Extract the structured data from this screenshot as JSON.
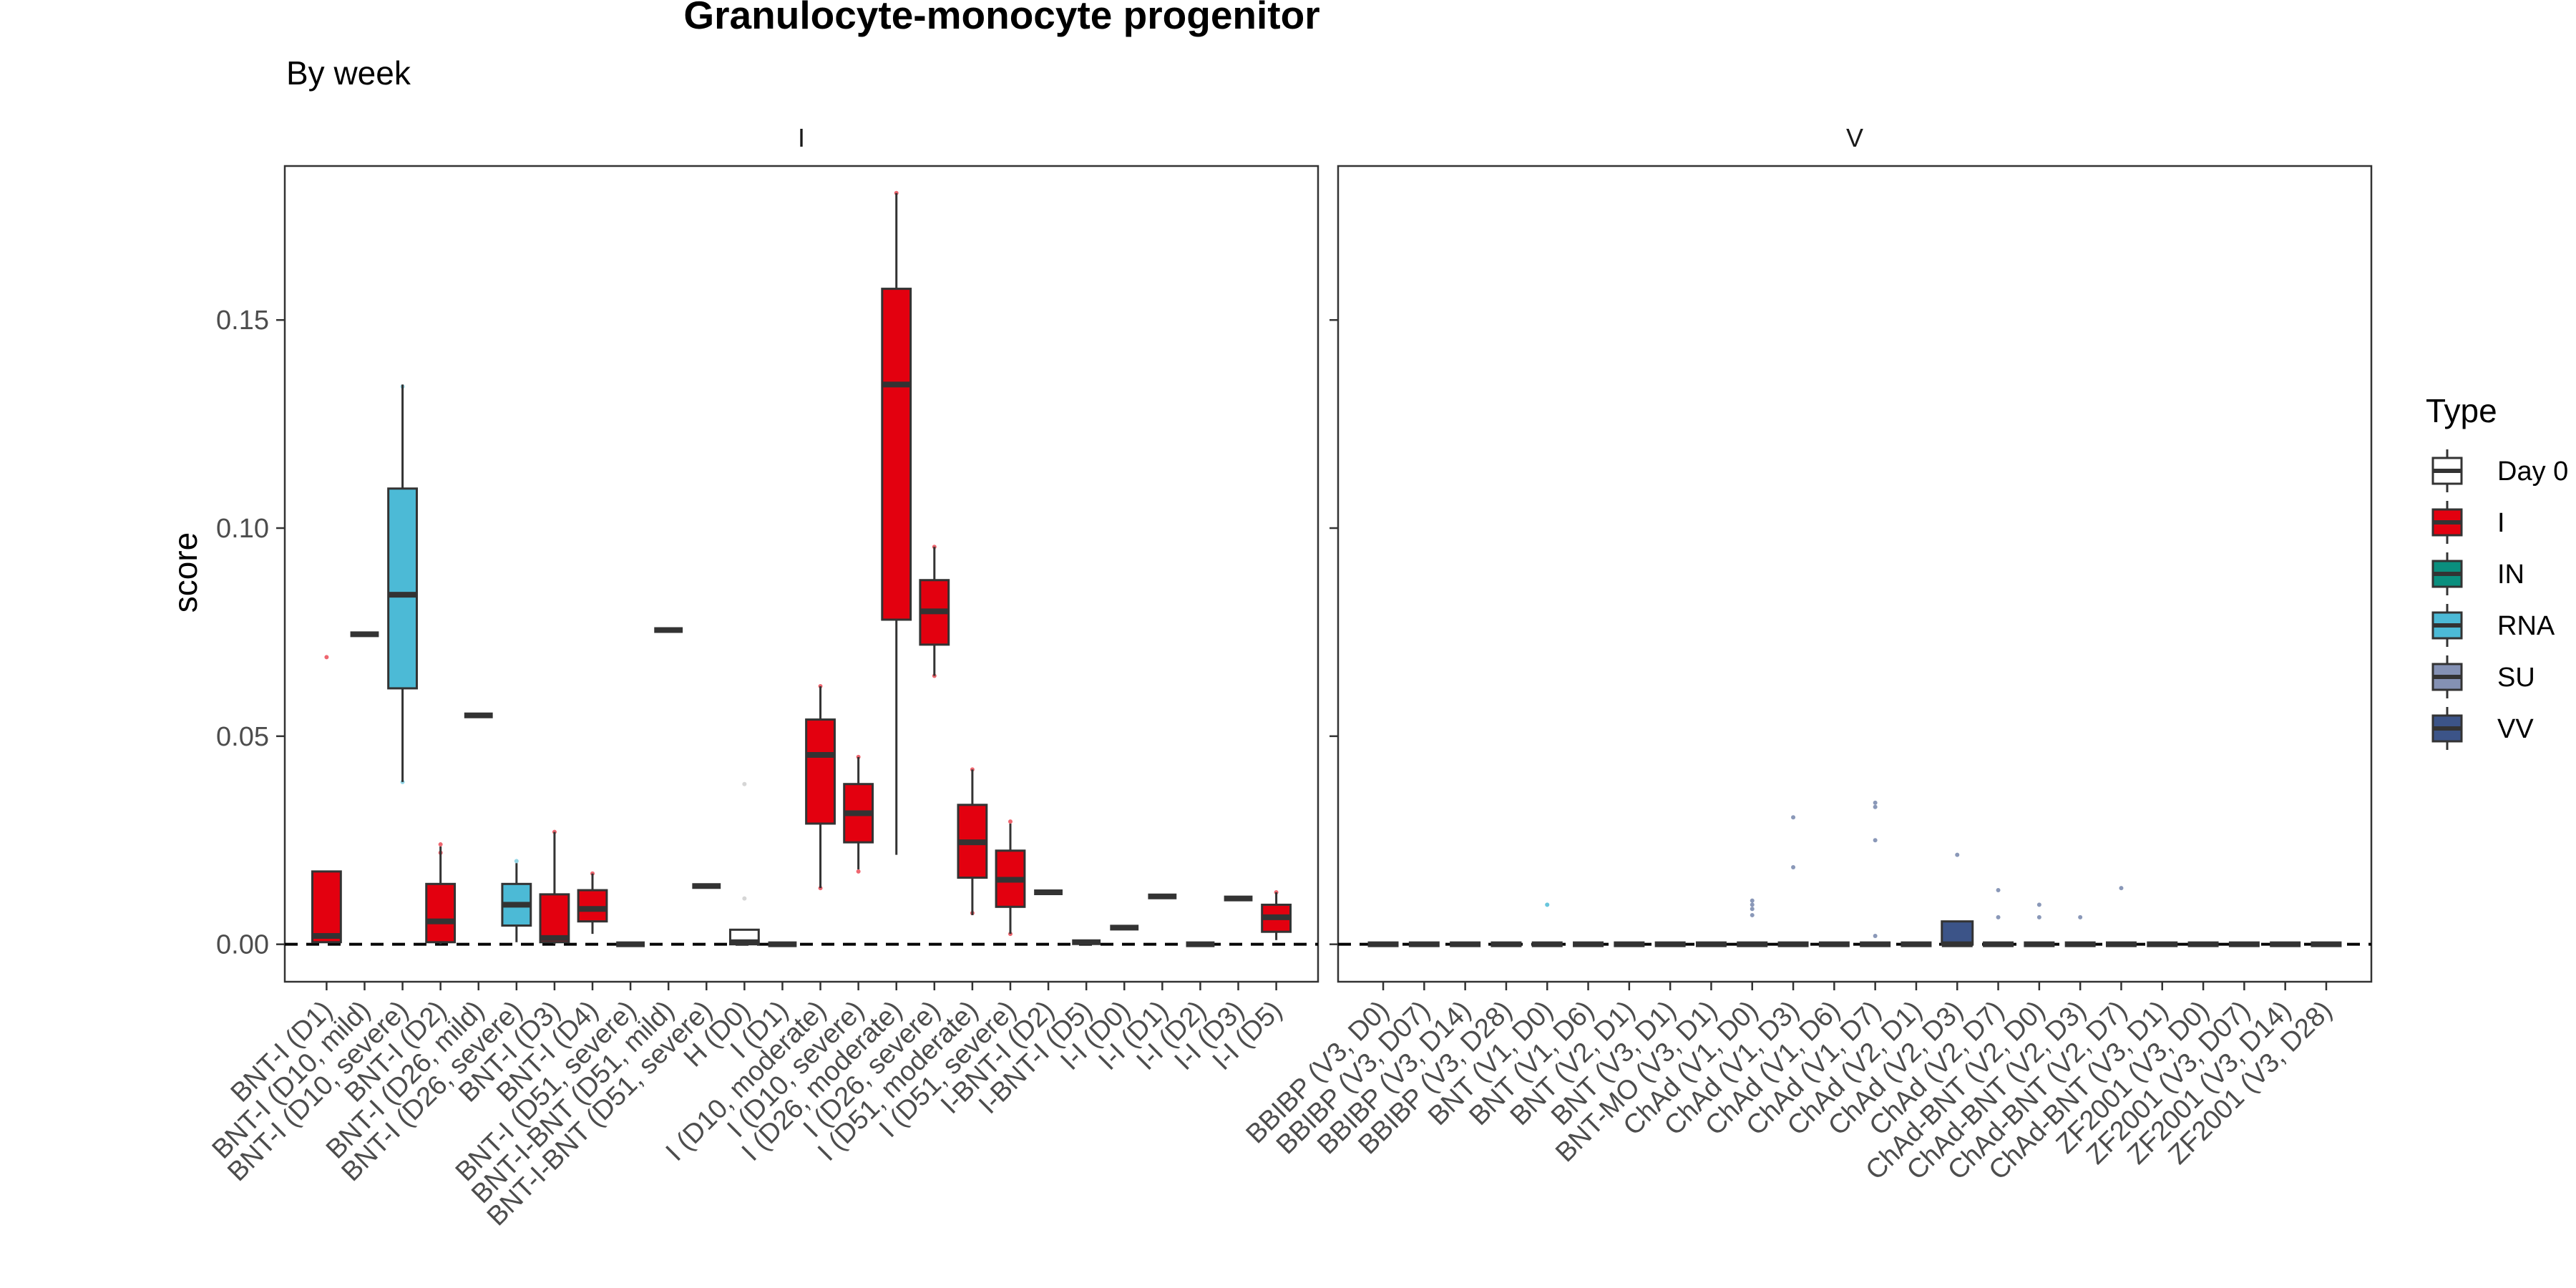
{
  "chart_data": {
    "type": "box",
    "title": "Granulocyte-monocyte progenitor",
    "subtitle": "By week",
    "ylabel": "score",
    "xlabel": "",
    "ylim": [
      -0.009,
      0.187
    ],
    "yticks": [
      0.0,
      0.05,
      0.1,
      0.15
    ],
    "ytick_labels": [
      "0.00",
      "0.05",
      "0.10",
      "0.15"
    ],
    "reference_line": 0.0,
    "legend": {
      "title": "Type",
      "position": "right",
      "entries": [
        {
          "label": "Day 0",
          "color": "#ffffff"
        },
        {
          "label": "I",
          "color": "#e3000f"
        },
        {
          "label": "IN",
          "color": "#0a8f7e"
        },
        {
          "label": "RNA",
          "color": "#4cbad6"
        },
        {
          "label": "SU",
          "color": "#8491b4"
        },
        {
          "label": "VV",
          "color": "#3c5488"
        }
      ]
    },
    "type_colors": {
      "Day 0": "#ffffff",
      "I": "#e3000f",
      "IN": "#0a8f7e",
      "RNA": "#4cbad6",
      "SU": "#8491b4",
      "VV": "#3c5488"
    },
    "panels": [
      {
        "label": "I",
        "boxes": [
          {
            "category": "BNT-I (D1)",
            "type": "I",
            "q1": 0.0005,
            "median": 0.002,
            "q3": 0.0175,
            "lo": 0.0005,
            "hi": 0.0175,
            "points": [
              0.069
            ]
          },
          {
            "category": "BNT-I (D10, mild)",
            "type": "I",
            "q1": 0.0745,
            "median": 0.0745,
            "q3": 0.0745,
            "lo": 0.0745,
            "hi": 0.0745,
            "points": []
          },
          {
            "category": "BNT-I (D10, severe)",
            "type": "RNA",
            "q1": 0.0615,
            "median": 0.084,
            "q3": 0.1095,
            "lo": 0.039,
            "hi": 0.1345,
            "points": [
              0.134,
              0.039
            ]
          },
          {
            "category": "BNT-I (D2)",
            "type": "I",
            "q1": 0.0005,
            "median": 0.0055,
            "q3": 0.0145,
            "lo": 0.0,
            "hi": 0.0235,
            "points": [
              0.024,
              0.022
            ]
          },
          {
            "category": "BNT-I (D26, mild)",
            "type": "I",
            "q1": 0.055,
            "median": 0.055,
            "q3": 0.055,
            "lo": 0.055,
            "hi": 0.055,
            "points": []
          },
          {
            "category": "BNT-I (D26, severe)",
            "type": "RNA",
            "q1": 0.0045,
            "median": 0.0095,
            "q3": 0.0145,
            "lo": 0.0005,
            "hi": 0.0195,
            "points": [
              0.02
            ]
          },
          {
            "category": "BNT-I (D3)",
            "type": "I",
            "q1": 0.0005,
            "median": 0.0015,
            "q3": 0.012,
            "lo": 0.0,
            "hi": 0.027,
            "points": [
              0.027
            ]
          },
          {
            "category": "BNT-I (D4)",
            "type": "I",
            "q1": 0.0055,
            "median": 0.0085,
            "q3": 0.013,
            "lo": 0.0025,
            "hi": 0.017,
            "points": [
              0.017
            ]
          },
          {
            "category": "BNT-I (D51, severe)",
            "type": "I",
            "q1": 0.0,
            "median": 0.0,
            "q3": 0.0,
            "lo": 0.0,
            "hi": 0.0,
            "points": []
          },
          {
            "category": "BNT-I-BNT (D51, mild)",
            "type": "I",
            "q1": 0.0755,
            "median": 0.0755,
            "q3": 0.0755,
            "lo": 0.0755,
            "hi": 0.0755,
            "points": []
          },
          {
            "category": "BNT-I-BNT (D51, severe)",
            "type": "I",
            "q1": 0.014,
            "median": 0.014,
            "q3": 0.014,
            "lo": 0.014,
            "hi": 0.014,
            "points": []
          },
          {
            "category": "H (D0)",
            "type": "Day 0",
            "q1": 0.0,
            "median": 0.0005,
            "q3": 0.0035,
            "lo": 0.0,
            "hi": 0.0035,
            "points": [
              0.011,
              0.0385
            ]
          },
          {
            "category": "I (D1)",
            "type": "I",
            "q1": 0.0,
            "median": 0.0,
            "q3": 0.0,
            "lo": 0.0,
            "hi": 0.0,
            "points": []
          },
          {
            "category": "I (D10, moderate)",
            "type": "I",
            "q1": 0.029,
            "median": 0.0455,
            "q3": 0.054,
            "lo": 0.0135,
            "hi": 0.062,
            "points": [
              0.062,
              0.0135
            ]
          },
          {
            "category": "I (D10, severe)",
            "type": "I",
            "q1": 0.0245,
            "median": 0.0315,
            "q3": 0.0385,
            "lo": 0.018,
            "hi": 0.045,
            "points": [
              0.045,
              0.0175
            ]
          },
          {
            "category": "I (D26, moderate)",
            "type": "I",
            "q1": 0.078,
            "median": 0.1345,
            "q3": 0.1575,
            "lo": 0.0215,
            "hi": 0.1805,
            "points": [
              0.1805
            ]
          },
          {
            "category": "I (D26, severe)",
            "type": "I",
            "q1": 0.072,
            "median": 0.08,
            "q3": 0.0875,
            "lo": 0.0645,
            "hi": 0.0955,
            "points": [
              0.0955,
              0.0645
            ]
          },
          {
            "category": "I (D51, moderate)",
            "type": "I",
            "q1": 0.016,
            "median": 0.0245,
            "q3": 0.0335,
            "lo": 0.007,
            "hi": 0.042,
            "points": [
              0.042,
              0.0075
            ]
          },
          {
            "category": "I (D51, severe)",
            "type": "I",
            "q1": 0.009,
            "median": 0.0155,
            "q3": 0.0225,
            "lo": 0.0025,
            "hi": 0.029,
            "points": [
              0.0295,
              0.0025
            ]
          },
          {
            "category": "I-BNT-I (D2)",
            "type": "I",
            "q1": 0.0125,
            "median": 0.0125,
            "q3": 0.0125,
            "lo": 0.0125,
            "hi": 0.0125,
            "points": []
          },
          {
            "category": "I-BNT-I (D5)",
            "type": "I",
            "q1": 0.0005,
            "median": 0.0005,
            "q3": 0.0005,
            "lo": 0.0005,
            "hi": 0.0005,
            "points": []
          },
          {
            "category": "I-I (D0)",
            "type": "I",
            "q1": 0.004,
            "median": 0.004,
            "q3": 0.004,
            "lo": 0.004,
            "hi": 0.004,
            "points": []
          },
          {
            "category": "I-I (D1)",
            "type": "I",
            "q1": 0.0115,
            "median": 0.0115,
            "q3": 0.0115,
            "lo": 0.0115,
            "hi": 0.0115,
            "points": []
          },
          {
            "category": "I-I (D2)",
            "type": "I",
            "q1": 0.0,
            "median": 0.0,
            "q3": 0.0,
            "lo": 0.0,
            "hi": 0.0,
            "points": []
          },
          {
            "category": "I-I (D3)",
            "type": "I",
            "q1": 0.011,
            "median": 0.011,
            "q3": 0.011,
            "lo": 0.011,
            "hi": 0.011,
            "points": []
          },
          {
            "category": "I-I (D5)",
            "type": "I",
            "q1": 0.003,
            "median": 0.0065,
            "q3": 0.0095,
            "lo": 0.001,
            "hi": 0.0125,
            "points": [
              0.0125
            ]
          }
        ]
      },
      {
        "label": "V",
        "boxes": [
          {
            "category": "BBIBP (V3, D0)",
            "type": "VV",
            "q1": 0.0,
            "median": 0.0,
            "q3": 0.0,
            "lo": 0.0,
            "hi": 0.0,
            "points": []
          },
          {
            "category": "BBIBP (V3, D07)",
            "type": "VV",
            "q1": 0.0,
            "median": 0.0,
            "q3": 0.0,
            "lo": 0.0,
            "hi": 0.0,
            "points": []
          },
          {
            "category": "BBIBP (V3, D14)",
            "type": "VV",
            "q1": 0.0,
            "median": 0.0,
            "q3": 0.0,
            "lo": 0.0,
            "hi": 0.0,
            "points": []
          },
          {
            "category": "BBIBP (V3, D28)",
            "type": "VV",
            "q1": 0.0,
            "median": 0.0,
            "q3": 0.0,
            "lo": 0.0,
            "hi": 0.0,
            "points": []
          },
          {
            "category": "BNT (V1, D0)",
            "type": "RNA",
            "q1": 0.0,
            "median": 0.0,
            "q3": 0.0,
            "lo": 0.0,
            "hi": 0.0,
            "points": [
              0.0095,
              0.0095
            ]
          },
          {
            "category": "BNT (V1, D6)",
            "type": "RNA",
            "q1": 0.0,
            "median": 0.0,
            "q3": 0.0,
            "lo": 0.0,
            "hi": 0.0,
            "points": []
          },
          {
            "category": "BNT (V2, D1)",
            "type": "RNA",
            "q1": 0.0,
            "median": 0.0,
            "q3": 0.0,
            "lo": 0.0,
            "hi": 0.0,
            "points": []
          },
          {
            "category": "BNT (V3, D1)",
            "type": "RNA",
            "q1": 0.0,
            "median": 0.0,
            "q3": 0.0,
            "lo": 0.0,
            "hi": 0.0,
            "points": []
          },
          {
            "category": "BNT-MO (V3, D1)",
            "type": "RNA",
            "q1": 0.0,
            "median": 0.0,
            "q3": 0.0,
            "lo": 0.0,
            "hi": 0.0,
            "points": []
          },
          {
            "category": "ChAd (V1, D0)",
            "type": "VV",
            "q1": 0.0,
            "median": 0.0,
            "q3": 0.0,
            "lo": 0.0,
            "hi": 0.0,
            "points": [
              0.007,
              0.0085,
              0.0095,
              0.0105
            ]
          },
          {
            "category": "ChAd (V1, D3)",
            "type": "VV",
            "q1": 0.0,
            "median": 0.0,
            "q3": 0.0,
            "lo": 0.0,
            "hi": 0.0,
            "points": [
              0.0185,
              0.0305
            ]
          },
          {
            "category": "ChAd (V1, D6)",
            "type": "VV",
            "q1": 0.0,
            "median": 0.0,
            "q3": 0.0,
            "lo": 0.0,
            "hi": 0.0,
            "points": []
          },
          {
            "category": "ChAd (V1, D7)",
            "type": "VV",
            "q1": 0.0,
            "median": 0.0,
            "q3": 0.0,
            "lo": 0.0,
            "hi": 0.0,
            "points": [
              0.034,
              0.033,
              0.025,
              0.002
            ]
          },
          {
            "category": "ChAd (V2, D1)",
            "type": "VV",
            "q1": 0.0,
            "median": 0.0,
            "q3": 0.0,
            "lo": 0.0,
            "hi": 0.0,
            "points": []
          },
          {
            "category": "ChAd (V2, D3)",
            "type": "VV",
            "q1": 0.0,
            "median": 0.0,
            "q3": 0.0055,
            "lo": 0.0,
            "hi": 0.0055,
            "points": [
              0.0215
            ]
          },
          {
            "category": "ChAd (V2, D7)",
            "type": "VV",
            "q1": 0.0,
            "median": 0.0,
            "q3": 0.0,
            "lo": 0.0,
            "hi": 0.0,
            "points": [
              0.013,
              0.0065
            ]
          },
          {
            "category": "ChAd-BNT (V2, D0)",
            "type": "VV",
            "q1": 0.0,
            "median": 0.0,
            "q3": 0.0,
            "lo": 0.0,
            "hi": 0.0,
            "points": [
              0.0095,
              0.0065
            ]
          },
          {
            "category": "ChAd-BNT (V2, D3)",
            "type": "VV",
            "q1": 0.0,
            "median": 0.0,
            "q3": 0.0,
            "lo": 0.0,
            "hi": 0.0,
            "points": [
              0.0065
            ]
          },
          {
            "category": "ChAd-BNT (V2, D7)",
            "type": "VV",
            "q1": 0.0,
            "median": 0.0,
            "q3": 0.0,
            "lo": 0.0,
            "hi": 0.0,
            "points": [
              0.0135
            ]
          },
          {
            "category": "ChAd-BNT (V3, D1)",
            "type": "VV",
            "q1": 0.0,
            "median": 0.0,
            "q3": 0.0,
            "lo": 0.0,
            "hi": 0.0,
            "points": []
          },
          {
            "category": "ZF2001 (V3, D0)",
            "type": "SU",
            "q1": 0.0,
            "median": 0.0,
            "q3": 0.0,
            "lo": 0.0,
            "hi": 0.0,
            "points": []
          },
          {
            "category": "ZF2001 (V3, D07)",
            "type": "SU",
            "q1": 0.0,
            "median": 0.0,
            "q3": 0.0,
            "lo": 0.0,
            "hi": 0.0,
            "points": []
          },
          {
            "category": "ZF2001 (V3, D14)",
            "type": "SU",
            "q1": 0.0,
            "median": 0.0,
            "q3": 0.0,
            "lo": 0.0,
            "hi": 0.0,
            "points": []
          },
          {
            "category": "ZF2001 (V3, D28)",
            "type": "SU",
            "q1": 0.0,
            "median": 0.0,
            "q3": 0.0,
            "lo": 0.0,
            "hi": 0.0,
            "points": []
          }
        ]
      }
    ]
  }
}
